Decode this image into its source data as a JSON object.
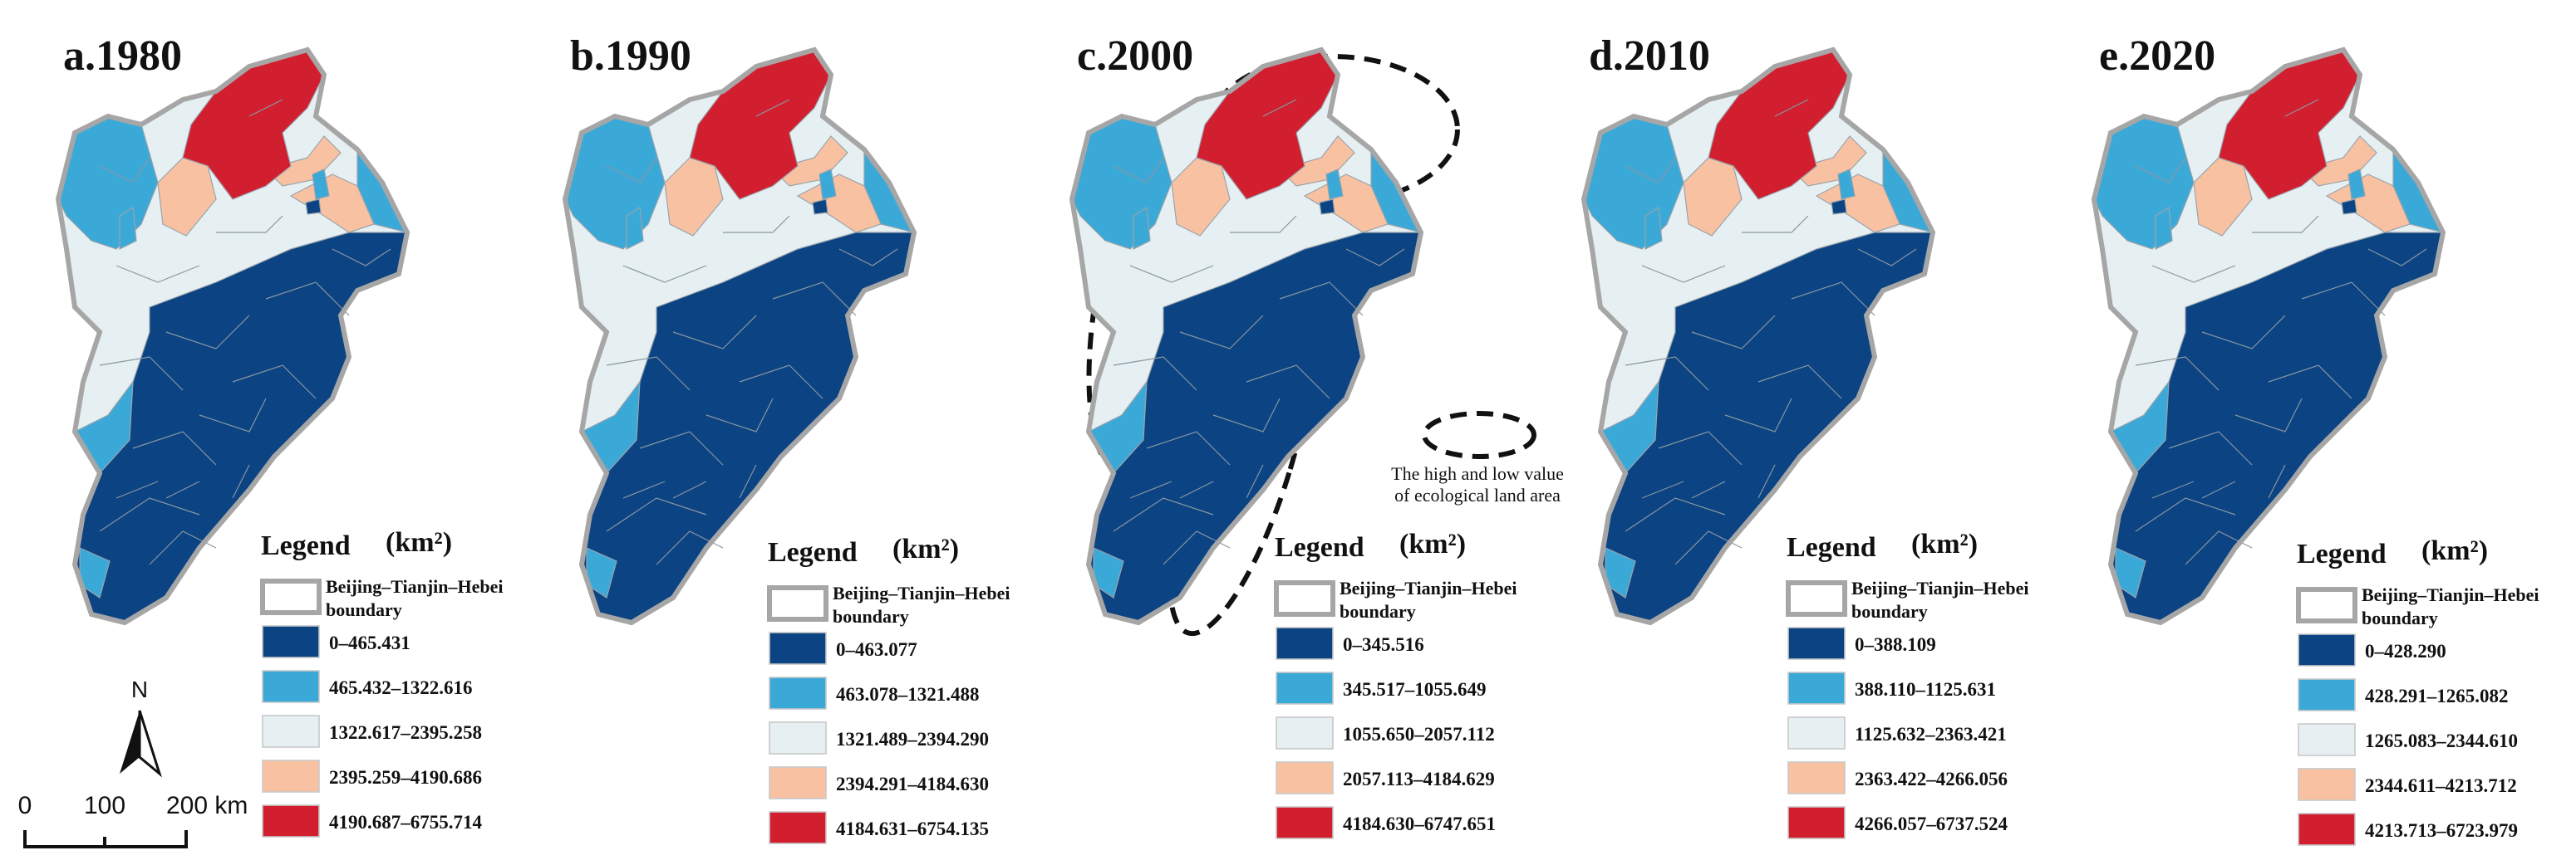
{
  "panels": [
    {
      "title": "a.1980",
      "legend_title": "Legend",
      "legend_unit": "(km²)",
      "boundary_label": [
        "Beijing–Tianjin–Hebei",
        "boundary"
      ],
      "classes": [
        "0–465.431",
        "465.432–1322.616",
        "1322.617–2395.258",
        "2395.259–4190.686",
        "4190.687–6755.714"
      ]
    },
    {
      "title": "b.1990",
      "legend_title": "Legend",
      "legend_unit": "(km²)",
      "boundary_label": [
        "Beijing–Tianjin–Hebei",
        "boundary"
      ],
      "classes": [
        "0–463.077",
        "463.078–1321.488",
        "1321.489–2394.290",
        "2394.291–4184.630",
        "4184.631–6754.135"
      ]
    },
    {
      "title": "c.2000",
      "legend_title": "Legend",
      "legend_unit": "(km²)",
      "boundary_label": [
        "Beijing–Tianjin–Hebei",
        "boundary"
      ],
      "classes": [
        "0–345.516",
        "345.517–1055.649",
        "1055.650–2057.112",
        "2057.113–4184.629",
        "4184.630–6747.651"
      ]
    },
    {
      "title": "d.2010",
      "legend_title": "Legend",
      "legend_unit": "(km²)",
      "boundary_label": [
        "Beijing–Tianjin–Hebei",
        "boundary"
      ],
      "classes": [
        "0–388.109",
        "388.110–1125.631",
        "1125.632–2363.421",
        "2363.422–4266.056",
        "4266.057–6737.524"
      ]
    },
    {
      "title": "e.2020",
      "legend_title": "Legend",
      "legend_unit": "(km²)",
      "boundary_label": [
        "Beijing–Tianjin–Hebei",
        "boundary"
      ],
      "classes": [
        "0–428.290",
        "428.291–1265.082",
        "1265.083–2344.610",
        "2344.611–4213.712",
        "4213.713–6723.979"
      ]
    }
  ],
  "class_colors": [
    "#0b4383",
    "#3ba9d8",
    "#e6f0f3",
    "#f8c2a2",
    "#d21f2f"
  ],
  "north_label": "N",
  "scale_labels": [
    "0",
    "100",
    "200 km"
  ],
  "annotation": [
    "The high and low value",
    "of ecological land area"
  ]
}
